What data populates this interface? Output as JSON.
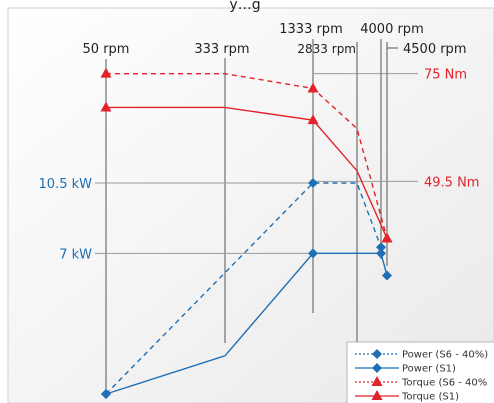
{
  "chart_data": {
    "type": "line",
    "title_visible_fragment": "y…g",
    "rpm_markers": [
      {
        "label": "50 rpm",
        "rpm": 50
      },
      {
        "label": "333 rpm",
        "rpm": 333
      },
      {
        "label": "1333 rpm",
        "rpm": 1333
      },
      {
        "label": "2833 rpm",
        "rpm": 2833
      },
      {
        "label": "4000 rpm",
        "rpm": 4000
      },
      {
        "label": "4500 rpm",
        "rpm": 4500
      }
    ],
    "torque_refs": [
      {
        "label": "75 Nm",
        "value": 75
      },
      {
        "label": "49.5 Nm",
        "value": 49.5
      }
    ],
    "power_refs": [
      {
        "label": "10.5 kW",
        "value": 10.5
      },
      {
        "label": "7 kW",
        "value": 7
      }
    ],
    "series": [
      {
        "name": "Power (S6 - 40%)",
        "kind": "power",
        "dashed": true,
        "color": "#1f6fb5",
        "marker": "diamond",
        "points": [
          [
            50,
            0
          ],
          [
            1333,
            10.5
          ],
          [
            2833,
            10.5
          ],
          [
            4000,
            7.3
          ]
        ]
      },
      {
        "name": "Power (S1)",
        "kind": "power",
        "dashed": false,
        "color": "#1f6fb5",
        "marker": "diamond",
        "points": [
          [
            50,
            0
          ],
          [
            333,
            1.9
          ],
          [
            1333,
            7
          ],
          [
            4000,
            7
          ],
          [
            4500,
            5.9
          ]
        ]
      },
      {
        "name": "Torque (S6 - 40%)",
        "kind": "torque",
        "dashed": true,
        "color": "#e2232a",
        "marker": "triangle",
        "points": [
          [
            50,
            75
          ],
          [
            333,
            75
          ],
          [
            1333,
            71.5
          ],
          [
            2833,
            62
          ],
          [
            4500,
            36
          ]
        ]
      },
      {
        "name": "Torque (S1)",
        "kind": "torque",
        "dashed": false,
        "color": "#e2232a",
        "marker": "triangle",
        "points": [
          [
            50,
            67
          ],
          [
            333,
            67
          ],
          [
            1333,
            64
          ],
          [
            2833,
            52
          ],
          [
            4500,
            36
          ]
        ]
      }
    ],
    "legend_entries": [
      "Power (S6 - 40%)",
      "Power (S1)",
      "Torque (S6 - 40%",
      "Torque (S1)"
    ],
    "legend_position": "bottom-right",
    "colors": {
      "power": "#1f6fb5",
      "torque": "#e2232a",
      "axis": "#555555"
    }
  }
}
